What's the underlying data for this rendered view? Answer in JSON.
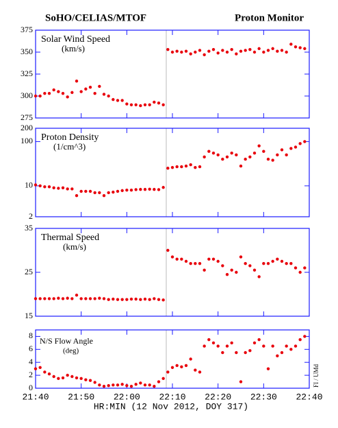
{
  "header": {
    "left": "SoHO/CELIAS/MTOF",
    "right": "Proton Monitor"
  },
  "xlabel": "HR:MIN (12 Nov 2012, DOY 317)",
  "credit": "FI / UMd",
  "chart_data": [
    {
      "type": "scatter",
      "title": "Solar Wind Speed",
      "unit": "(km/s)",
      "color": "#e8000b",
      "x": [
        0,
        1,
        2,
        3,
        4,
        5,
        6,
        7,
        8,
        9,
        10,
        11,
        12,
        13,
        14,
        15,
        16,
        17,
        18,
        19,
        20,
        21,
        22,
        23,
        24,
        25,
        26,
        27,
        28,
        29,
        30,
        31,
        32,
        33,
        34,
        35,
        36,
        37,
        38,
        39,
        40,
        41,
        42,
        43,
        44,
        45,
        46,
        47,
        48,
        49,
        50,
        51,
        52,
        53,
        54,
        55,
        56,
        57,
        58,
        59
      ],
      "values": [
        300,
        300,
        303,
        303,
        307,
        305,
        303,
        299,
        304,
        317,
        305,
        308,
        310,
        303,
        311,
        302,
        300,
        296,
        295,
        295,
        291,
        290,
        290,
        289,
        290,
        290,
        293,
        292,
        290,
        353,
        350,
        351,
        350,
        351,
        348,
        350,
        352,
        347,
        351,
        353,
        349,
        352,
        350,
        353,
        348,
        351,
        352,
        353,
        350,
        354,
        350,
        352,
        354,
        351,
        352,
        350,
        359,
        356,
        355,
        354
      ],
      "xlim": [
        0,
        60
      ],
      "xticks": [
        0,
        10,
        20,
        30,
        40,
        50,
        60
      ],
      "ylim": [
        275,
        375
      ],
      "yticks": [
        275,
        300,
        325,
        350,
        375
      ],
      "log": false
    },
    {
      "type": "scatter",
      "title": "Proton Density",
      "unit": "(1/cm^3)",
      "color": "#e8000b",
      "x": [
        0,
        1,
        2,
        3,
        4,
        5,
        6,
        7,
        8,
        9,
        10,
        11,
        12,
        13,
        14,
        15,
        16,
        17,
        18,
        19,
        20,
        21,
        22,
        23,
        24,
        25,
        26,
        27,
        28,
        29,
        30,
        31,
        32,
        33,
        34,
        35,
        36,
        37,
        38,
        39,
        40,
        41,
        42,
        43,
        44,
        45,
        46,
        47,
        48,
        49,
        50,
        51,
        52,
        53,
        54,
        55,
        56,
        57,
        58,
        59
      ],
      "values": [
        10.5,
        10,
        9.5,
        9.5,
        9,
        8.8,
        9,
        8.5,
        8.5,
        6,
        7.5,
        7.5,
        7.5,
        7,
        7,
        6,
        7,
        7.2,
        7.5,
        7.8,
        8,
        8,
        8.2,
        8.3,
        8.3,
        8.4,
        8.3,
        8.2,
        9.2,
        25,
        26,
        27,
        27,
        28,
        30,
        26,
        27,
        45,
        60,
        55,
        50,
        40,
        45,
        55,
        50,
        28,
        40,
        45,
        55,
        80,
        60,
        40,
        38,
        50,
        65,
        50,
        70,
        75,
        90,
        100
      ],
      "xlim": [
        0,
        60
      ],
      "xticks": [
        0,
        10,
        20,
        30,
        40,
        50,
        60
      ],
      "ylim": [
        2,
        200
      ],
      "yticks": [
        2,
        10,
        100,
        200
      ],
      "log": true
    },
    {
      "type": "scatter",
      "title": "Thermal Speed",
      "unit": "(km/s)",
      "color": "#e8000b",
      "x": [
        0,
        1,
        2,
        3,
        4,
        5,
        6,
        7,
        8,
        9,
        10,
        11,
        12,
        13,
        14,
        15,
        16,
        17,
        18,
        19,
        20,
        21,
        22,
        23,
        24,
        25,
        26,
        27,
        28,
        29,
        30,
        31,
        32,
        33,
        34,
        35,
        36,
        37,
        38,
        39,
        40,
        41,
        42,
        43,
        44,
        45,
        46,
        47,
        48,
        49,
        50,
        51,
        52,
        53,
        54,
        55,
        56,
        57,
        58,
        59
      ],
      "values": [
        19,
        19,
        19,
        19,
        19,
        19.1,
        19,
        19.1,
        19,
        19.8,
        19,
        19,
        19,
        19,
        19.1,
        19,
        18.8,
        18.9,
        18.8,
        18.8,
        18.8,
        18.9,
        18.9,
        18.8,
        18.9,
        18.8,
        19,
        18.8,
        18.7,
        30,
        28.5,
        28,
        28,
        27.5,
        27,
        27,
        27,
        25.5,
        28,
        28,
        27.5,
        26.5,
        24.5,
        25.5,
        25,
        28.5,
        27,
        26.5,
        25.5,
        24,
        27,
        27,
        27.5,
        28,
        27.5,
        27,
        27,
        26,
        25,
        26
      ],
      "xlim": [
        0,
        60
      ],
      "xticks": [
        0,
        10,
        20,
        30,
        40,
        50,
        60
      ],
      "ylim": [
        15,
        35
      ],
      "yticks": [
        15,
        25,
        35
      ],
      "log": false
    },
    {
      "type": "scatter",
      "title": "N/S Flow Angle",
      "unit": "(deg)",
      "color": "#e8000b",
      "x": [
        0,
        1,
        2,
        3,
        4,
        5,
        6,
        7,
        8,
        9,
        10,
        11,
        12,
        13,
        14,
        15,
        16,
        17,
        18,
        19,
        20,
        21,
        22,
        23,
        24,
        25,
        26,
        27,
        28,
        29,
        30,
        31,
        32,
        33,
        34,
        35,
        36,
        37,
        38,
        39,
        40,
        41,
        42,
        43,
        44,
        45,
        46,
        47,
        48,
        49,
        50,
        51,
        52,
        53,
        54,
        55,
        56,
        57,
        58,
        59
      ],
      "values": [
        3,
        3.2,
        2.5,
        2.2,
        1.8,
        1.5,
        1.6,
        2,
        1.8,
        1.6,
        1.5,
        1.3,
        1.2,
        0.9,
        0.5,
        0.3,
        0.4,
        0.5,
        0.5,
        0.6,
        0.4,
        0.3,
        0.6,
        0.8,
        0.5,
        0.5,
        0.3,
        1,
        1.5,
        2.5,
        3.2,
        3.5,
        3.3,
        3.5,
        4.5,
        2.8,
        2.5,
        6.5,
        7.5,
        7,
        6.5,
        5.5,
        6.5,
        7,
        5.5,
        1,
        5.5,
        5.8,
        7,
        7.5,
        6.5,
        3,
        6.5,
        5,
        5.5,
        6.5,
        6,
        6.5,
        7.5,
        8
      ],
      "xlim": [
        0,
        60
      ],
      "xticks": [
        {
          "value": 0,
          "label": "21:40"
        },
        {
          "value": 10,
          "label": "21:50"
        },
        {
          "value": 20,
          "label": "22:00"
        },
        {
          "value": 30,
          "label": "22:10"
        },
        {
          "value": 40,
          "label": "22:20"
        },
        {
          "value": 50,
          "label": "22:30"
        },
        {
          "value": 60,
          "label": "22:40"
        }
      ],
      "ylim": [
        0,
        9
      ],
      "yticks": [
        0,
        2,
        4,
        6,
        8
      ],
      "log": false
    }
  ]
}
